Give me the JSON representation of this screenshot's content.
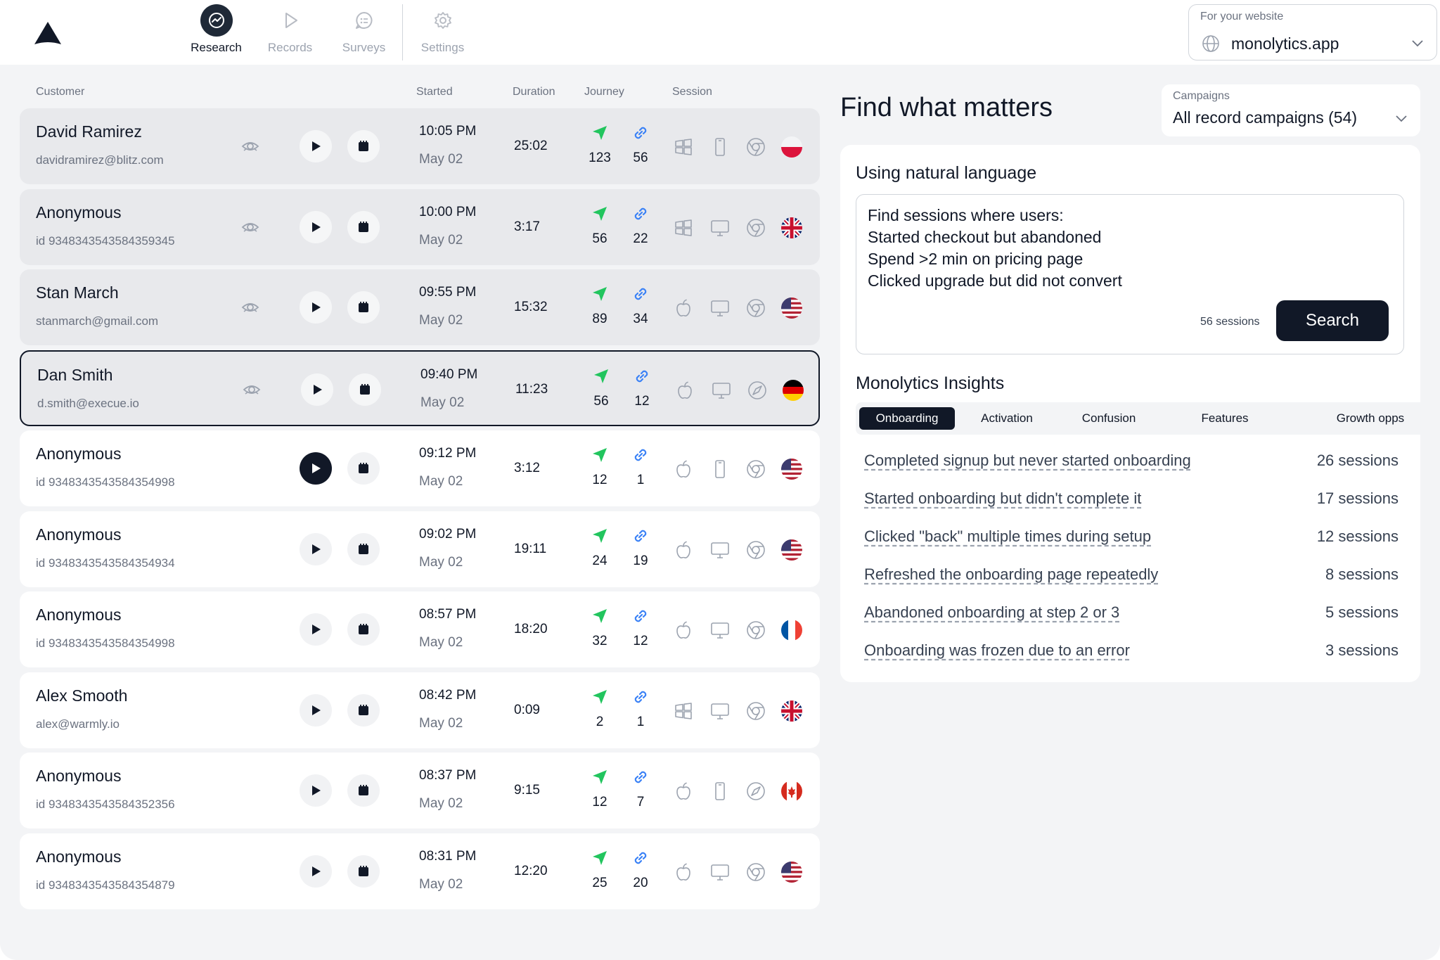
{
  "nav": {
    "items": [
      {
        "label": "Research",
        "icon": "research-icon"
      },
      {
        "label": "Records",
        "icon": "play-icon"
      },
      {
        "label": "Surveys",
        "icon": "chat-icon"
      },
      {
        "label": "Settings",
        "icon": "gear-icon"
      }
    ],
    "active": "Research"
  },
  "website": {
    "label": "For your website",
    "value": "monolytics.app"
  },
  "table": {
    "headers": {
      "customer": "Customer",
      "started": "Started",
      "duration": "Duration",
      "journey": "Journey",
      "session": "Session"
    },
    "rows": [
      {
        "name": "David Ramirez",
        "sub": "davidramirez@blitz.com",
        "time": "10:05 PM",
        "date": "May 02",
        "duration": "25:02",
        "pages": "123",
        "links": "56",
        "os": "windows",
        "device": "mobile",
        "browser": "chrome",
        "flag": "poland",
        "state": "viewed"
      },
      {
        "name": "Anonymous",
        "sub": "id 9348343543584359345",
        "time": "10:00 PM",
        "date": "May 02",
        "duration": "3:17",
        "pages": "56",
        "links": "22",
        "os": "windows",
        "device": "desktop",
        "browser": "chrome",
        "flag": "uk",
        "state": "viewed"
      },
      {
        "name": "Stan March",
        "sub": "stanmarch@gmail.com",
        "time": "09:55 PM",
        "date": "May 02",
        "duration": "15:32",
        "pages": "89",
        "links": "34",
        "os": "apple",
        "device": "desktop",
        "browser": "chrome",
        "flag": "usa",
        "state": "viewed"
      },
      {
        "name": "Dan Smith",
        "sub": "d.smith@execue.io",
        "time": "09:40 PM",
        "date": "May 02",
        "duration": "11:23",
        "pages": "56",
        "links": "12",
        "os": "apple",
        "device": "desktop",
        "browser": "safari",
        "flag": "germany",
        "state": "selected"
      },
      {
        "name": "Anonymous",
        "sub": "id 9348343543584354998",
        "time": "09:12 PM",
        "date": "May 02",
        "duration": "3:12",
        "pages": "12",
        "links": "1",
        "os": "apple",
        "device": "mobile",
        "browser": "chrome",
        "flag": "usa",
        "state": "playing"
      },
      {
        "name": "Anonymous",
        "sub": "id 9348343543584354934",
        "time": "09:02 PM",
        "date": "May 02",
        "duration": "19:11",
        "pages": "24",
        "links": "19",
        "os": "apple",
        "device": "desktop",
        "browser": "chrome",
        "flag": "usa",
        "state": "normal"
      },
      {
        "name": "Anonymous",
        "sub": "id 9348343543584354998",
        "time": "08:57 PM",
        "date": "May 02",
        "duration": "18:20",
        "pages": "32",
        "links": "12",
        "os": "apple",
        "device": "desktop",
        "browser": "chrome",
        "flag": "france",
        "state": "normal"
      },
      {
        "name": "Alex Smooth",
        "sub": "alex@warmly.io",
        "time": "08:42 PM",
        "date": "May 02",
        "duration": "0:09",
        "pages": "2",
        "links": "1",
        "os": "windows",
        "device": "desktop",
        "browser": "chrome",
        "flag": "uk",
        "state": "normal"
      },
      {
        "name": "Anonymous",
        "sub": "id 9348343543584352356",
        "time": "08:37 PM",
        "date": "May 02",
        "duration": "9:15",
        "pages": "12",
        "links": "7",
        "os": "apple",
        "device": "mobile",
        "browser": "safari",
        "flag": "canada",
        "state": "normal"
      },
      {
        "name": "Anonymous",
        "sub": "id 9348343543584354879",
        "time": "08:31 PM",
        "date": "May 02",
        "duration": "12:20",
        "pages": "25",
        "links": "20",
        "os": "apple",
        "device": "desktop",
        "browser": "chrome",
        "flag": "usa",
        "state": "normal"
      }
    ]
  },
  "find": {
    "title": "Find what matters",
    "campaigns": {
      "label": "Campaigns",
      "value": "All record campaigns (54)"
    }
  },
  "natural": {
    "heading": "Using natural language",
    "lines": [
      "Find sessions where users:",
      "Started checkout but abandoned",
      "Spend >2 min on pricing page",
      "Clicked upgrade but did not convert"
    ],
    "count": "56 sessions",
    "search_label": "Search"
  },
  "insights": {
    "heading": "Monolytics Insights",
    "tabs": [
      "Onboarding",
      "Activation",
      "Confusion",
      "Features",
      "Growth opps"
    ],
    "active_tab": "Onboarding",
    "items": [
      {
        "text": "Completed signup but never started onboarding",
        "count": "26 sessions"
      },
      {
        "text": "Started onboarding but didn't complete it",
        "count": "17 sessions"
      },
      {
        "text": "Clicked \"back\" multiple times during setup",
        "count": "12 sessions"
      },
      {
        "text": "Refreshed the onboarding page repeatedly",
        "count": "8 sessions"
      },
      {
        "text": "Abandoned onboarding at step 2 or 3",
        "count": "5 sessions"
      },
      {
        "text": "Onboarding was frozen due to an error",
        "count": "3 sessions"
      }
    ]
  },
  "colors": {
    "accent": "#111827",
    "journey_green": "#22c55e",
    "link_blue": "#3b82f6",
    "background": "#f3f4f6"
  }
}
